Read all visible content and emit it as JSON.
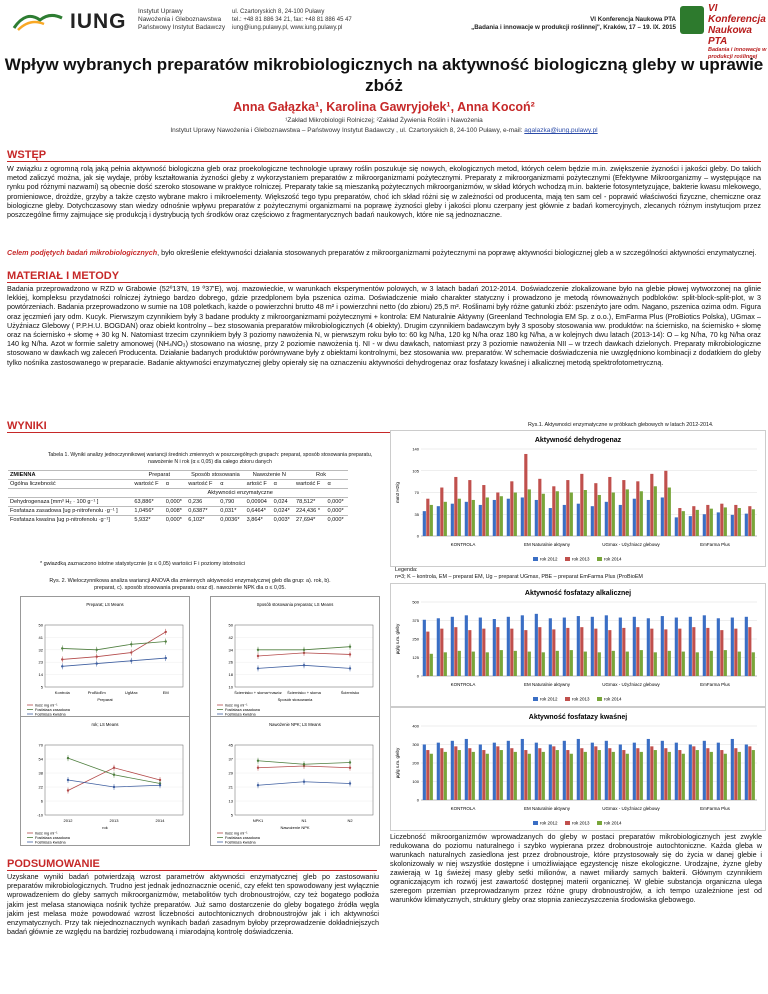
{
  "header": {
    "logo_text": "IUNG",
    "institute": [
      "Instytut Uprawy",
      "Nawożenia i Gleboznawstwa",
      "Państwowy Instytut Badawczy"
    ],
    "address": [
      "ul. Czartoryskich 8, 24-100 Puławy",
      "tel.: +48 81 886 34 21, fax: +48 81 886 45 47",
      "iung@iung.pulawy.pl, www.iung.pulawy.pl"
    ],
    "conference": [
      "VI Konferencja Naukowa PTA",
      "„Badania i innowacje w produkcji roślinnej\", Kraków, 17 – 19. IX. 2015"
    ],
    "badge_title": "VI Konferencja Naukowa PTA",
    "badge_sub": "Badania i innowacje w produkcji roślinnej"
  },
  "title": "Wpływ wybranych preparatów mikrobiologicznych na aktywność biologiczną gleby w uprawie zbóż",
  "authors": "Anna Gałązka¹, Karolina Gawryjołek¹, Anna Kocoń²",
  "affiliation1": "¹Zakład Mikrobiologii Rolniczej; ²Zakład Żywienia Roślin i Nawożenia",
  "affiliation2": "Instytut Uprawy Nawożenia i Gleboznawstwa – Państwowy Instytut Badawczy , ul. Czartoryskich 8, 24-100 Puławy,  e-mail:",
  "email": "agalazka@iung.pulawy.pl",
  "sections": {
    "intro_h": "WSTĘP",
    "intro": "W związku z ogromną rolą jaką pełnia aktywność biologiczna gleb oraz proekologiczne technologie uprawy roślin poszukuje się nowych, ekologicznych metod, których celem będzie m.in. zwiększenie żyzności i jakości gleby. Do takich metod zaliczyć można, jak się wydaje, próby kształtowania żyzności gleby z wykorzystaniem preparatów z mikroorganizmami pożytecznymi. Preparaty z mikroorganizmami pożytecznymi (Efektywne Mikroorganizmy – występujące na rynku pod różnymi nazwami) są obecnie dość szeroko stosowane w praktyce rolniczej. Preparaty takie są mieszanką pożytecznych mikroorganizmów, w skład których wchodzą m.in. bakterie fotosyntetyzujące, bakterie kwasu mlekowego, promieniowce, drożdże, grzyby a także często wybrane makro i mikroelementy. Większość tego typu preparatów, choć ich skład różni się w zależności od producenta, mają ten sam cel - poprawić właściwości fizyczne, chemiczne oraz biologiczne gleby. Dotychczasowy stan wiedzy odnośnie wpływu preparatów z pożytecznymi organizmami na poprawę żyzności gleby i jakości plonu czerpany jest głównie z badań komercyjnych, zlecanych różnym instytucjom przez poszczególne firmy zajmujące się produkcją i dystrybucją tych środków oraz częściowo z fragmentarycznych badań naukowych, które nie są  jednoznaczne.",
    "aim_lead": "Celem podjętych badań mikrobiologicznych",
    "aim": ", było określenie efektywności działania stosowanych preparatów z mikroorganizmami pożytecznymi na poprawę aktywności biologicznej gleb a w szczególności aktywności enzymatycznej.",
    "methods_h": "MATERIAŁ I METODY",
    "methods": "Badania przeprowadzono w RZD w Grabowie (52º13'N, 19 º37'E), woj. mazowieckie, w warunkach eksperymentów polowych, w 3 latach badań 2012-2014. Doświadczenie zlokalizowane było na glebie płowej wytworzonej na glinie lekkiej, kompleksu przydatności rolniczej żytniego bardzo dobrego, gdzie przedplonem była pszenica ozima. Doświadczenie miało charakter statyczny i prowadzono je metodą równoważnych podbloków: split-block-split-plot, w 3 powtórzeniach. Badania przeprowadzono w sumie na 108 poletkach, każde o powierzchni brutto 48 m² i powierzchni netto (do zbioru) 25,5 m². Roślinami były różne gatunki zbóż: pszenżyto jare odm. Nagano, pszenica ozima odm. Figura oraz jęczmień jary odm. Kucyk. Pierwszym czynnikiem były 3 badane produkty z mikroorganizmami pożytecznymi + kontrola: EM Naturalnie Aktywny (Greenland Technologia EM Sp. z o.o.), EmFarma Plus (ProBiotics Polska), UGmax – Użyźniacz Glebowy ( P.P.H.U. BOGDAN) oraz obiekt kontrolny – bez stosowania preparatów mikrobiologicznych (4 obiekty). Drugim czynnikiem badawczym były  3 sposoby stosowania ww. produktów: na ściernisko, na ściernisko + słomę oraz na ściernisko + słomę + 30 kg N. Natomiast trzecim czynnikiem były 3 poziomy nawożenia N, w pierwszym roku było to: 60 kg N/ha, 120 kg N/ha oraz 180 kg N/ha, a w kolejnych dwu latach (2013-14): O – kg N/ha, 70 kg N/ha  oraz 140 kg N/ha.  Azot w formie saletry amonowej (NH₄NO₃) stosowano  na wiosnę, przy 2 poziomie nawożenia tj. NI -  w dwu dawkach, natomiast przy 3 poziomie nawożenia NII – w trzech dawkach dzielonych. Preparaty mikrobiologiczne stosowano w dawkach wg zaleceń Producenta. Działanie badanych produktów porównywane były z obiektami kontrolnymi, bez stosowania ww. preparatów. W schemacie doświadczenia nie uwzględniono kombinacji z dodatkiem do gleby tylko nośnika zastosowanego w preparacie. Badanie aktywności enzymatycznej gleby opierały się na oznaczeniu aktywności dehydrogenaz oraz fosfatazy kwaśnej i alkalicznej metodą spektrofotometryczną.",
    "results_h": "WYNIKI",
    "summary_h": "PODSUMOWANIE",
    "summary": "Uzyskane wyniki badań potwierdzają wzrost parametrów aktywności enzymatycznej gleb po zastosowaniu preparatów mikrobiologicznych. Trudno jest jednak jednoznacznie ocenić, czy efekt ten spowodowany jest wyłącznie wprowadzeniem do gleby samych mikroorganizmów, metabolitów tych drobnoustrojów, czy też bogatego podłoża jakim jest melasa stanowiąca nośnik tychże preparatów. Już samo dostarczenie do gleby bogatego źródła węgla jakim jest melasa może powodować wzrost liczebności autochtonicznych drobnoustrojów jak i ich aktywności enzymatycznych. Przy tak niejednoznacznych wynikach badań zasadnym byłoby przeprowadzenie dokładniejszych badań głównie ze względu na bardziej rozbudowaną i miarodajną kontrolę doświadczenia.",
    "discussion": "Liczebność mikroorganizmów wprowadzanych do gleby w postaci preparatów mikrobiologicznych jest zwykle redukowana do poziomu naturalnego i szybko wypierana przez drobnoustroje autochtoniczne. Każda gleba w warunkach naturalnych zasiedlona jest przez drobnoustroje, które przystosowały się do życia w danej glebie i skolonizowały w niej wszystkie dostępne i umożliwiające egzystencję nisze ekologiczne. Urodzajne, żyzne gleby zawierają w 1g świeżej masy gleby setki milionów, a nawet miliardy samych bakterii. Głównym czynnikiem ograniczającym ich rozwój jest zawartość dostępnej materii organicznej. W glebie substancja organiczna ulega szeregom przemian przeprowadzanym przez różne grupy drobnoustrojów, a ich tempo uzależnione jest od warunków klimatycznych, struktury gleby oraz stopnia zanieczyszczenia środowiska glebowego."
  },
  "table": {
    "caption": "Tabela 1. Wyniki analizy jednoczynnikowej wariancji średnich zmiennych w poszczególnych grupach: preparat, sposób stosowania preparatu, nawożenie N i rok (α ≤ 0,05) dla całego zbioru danych",
    "head1": [
      "ZMIENNA",
      "Preparat",
      "Sposób stosowania",
      "Nawożenie N",
      "Rok"
    ],
    "head2": [
      "Ogólna liczebność",
      "wartość F",
      "α",
      "wartość F",
      "α",
      "artość F",
      "α",
      "wartość F",
      "α"
    ],
    "subhead": "Aktywności enzymatyczne",
    "rows": [
      {
        "name": "Dehydrogenaza [mm³ H₂ · 100 g⁻¹ ]",
        "v": [
          "63,886*",
          "0,000*",
          "0,236",
          "0,790",
          "0,00904",
          "0,024",
          "78,512*",
          "0,000*"
        ]
      },
      {
        "name": "Fosfataza zasadowa [ug p-nitrofenolu ·g⁻¹ ]",
        "v": [
          "1,0456*",
          "0,008*",
          "0,6387*",
          "0,031*",
          "0,6464*",
          "0,024*",
          "224,436 *",
          "0,000*"
        ]
      },
      {
        "name": "Fosfataza kwaśna [ug p-nitrofenolu ·g⁻¹]",
        "v": [
          "5,932*",
          "0,000*",
          "6,102*",
          "0,0036*",
          "3,864*",
          "0,003*",
          "27,694*",
          "0,000*"
        ]
      }
    ],
    "note": "* gwiazdką zaznaczono istotne statystycznie (α ≤ 0,05) wartości F i poziomy istotności"
  },
  "rys1_caption": "Rys.1. Aktywności enzymatyczne w próbkach glebowych w latach 2012-2014.",
  "rys1_legend": [
    "Legenda:",
    "n=3; K – kontrola, EM – preparat EM, Ug – preparat UGmax, PBE – preparat  EmFarma Plus (ProBioEM"
  ],
  "rys2_caption": "Rys. 2. Wieloczynnikowa analiza wariancji ANOVA dla zmiennych aktywności enzymatycznej gleb dla grup: a). rok, b). preparat, c). sposób stosowania preparatu oraz d). nawożenie NPK dla α ≤ 0,05.",
  "chart_data": [
    {
      "type": "bar",
      "title": "Aktywność dehydrogenaz",
      "groups": [
        "KONTROLA",
        "EM Naturalnie aktywny",
        "UGmax - Użyźniacz glebowy",
        "EmFarma Plus"
      ],
      "legend": [
        "rok 2012",
        "rok 2013",
        "rok 2014"
      ],
      "colors": [
        "#3a6ec4",
        "#c0504d",
        "#79a63a"
      ],
      "series": [
        {
          "name": "rok 2012",
          "values": [
            40,
            48,
            52,
            55,
            50,
            58,
            60,
            62,
            58,
            45,
            50,
            52,
            48,
            55,
            50,
            60,
            58,
            62,
            30,
            32,
            35,
            38,
            34,
            36
          ]
        },
        {
          "name": "rok 2013",
          "values": [
            60,
            78,
            95,
            90,
            82,
            70,
            88,
            132,
            92,
            80,
            90,
            100,
            85,
            95,
            90,
            88,
            100,
            105,
            45,
            48,
            50,
            52,
            50,
            48
          ]
        },
        {
          "name": "rok 2014",
          "values": [
            50,
            55,
            60,
            58,
            62,
            64,
            70,
            75,
            68,
            72,
            70,
            74,
            66,
            70,
            75,
            72,
            80,
            78,
            40,
            42,
            44,
            46,
            45,
            43
          ]
        }
      ],
      "ylim": [
        0,
        140
      ],
      "ylabel": "mm3 H2/g"
    },
    {
      "type": "bar",
      "title": "Aktywność fosfatazy alkalicznej",
      "groups": [
        "KONTROLA",
        "EM Naturalnie aktywny",
        "UGmax - Użyźniacz glebowy",
        "EmFarma Plus"
      ],
      "legend": [
        "rok 2012",
        "rok 2013",
        "rok 2014"
      ],
      "colors": [
        "#3a6ec4",
        "#c0504d",
        "#79a63a"
      ],
      "series": [
        {
          "name": "rok 2012",
          "values": [
            380,
            390,
            400,
            410,
            395,
            385,
            400,
            410,
            420,
            390,
            395,
            405,
            400,
            410,
            395,
            400,
            390,
            405,
            395,
            400,
            410,
            390,
            395,
            400
          ]
        },
        {
          "name": "rok 2013",
          "values": [
            300,
            320,
            330,
            310,
            320,
            330,
            320,
            310,
            330,
            315,
            325,
            330,
            320,
            310,
            325,
            330,
            320,
            315,
            320,
            330,
            325,
            310,
            320,
            330
          ]
        },
        {
          "name": "rok 2014",
          "values": [
            150,
            160,
            170,
            165,
            160,
            175,
            170,
            165,
            160,
            170,
            175,
            165,
            160,
            170,
            165,
            175,
            160,
            170,
            165,
            160,
            170,
            175,
            165,
            160
          ]
        }
      ],
      "ylim": [
        0,
        500
      ],
      "ylabel": "µg/g s.m. gleby"
    },
    {
      "type": "bar",
      "title": "Aktywność fosfatazy kwaśnej",
      "groups": [
        "KONTROLA",
        "EM Naturalnie aktywny",
        "UGmax - Użyźniacz glebowy",
        "EmFarma Plus"
      ],
      "legend": [
        "rok 2012",
        "rok 2013",
        "rok 2014"
      ],
      "colors": [
        "#3a6ec4",
        "#c0504d",
        "#79a63a"
      ],
      "series": [
        {
          "name": "rok 2012",
          "values": [
            300,
            310,
            320,
            330,
            300,
            310,
            320,
            330,
            310,
            300,
            320,
            330,
            310,
            320,
            300,
            310,
            330,
            320,
            310,
            300,
            320,
            310,
            330,
            300
          ]
        },
        {
          "name": "rok 2013",
          "values": [
            270,
            280,
            290,
            280,
            270,
            290,
            280,
            270,
            280,
            290,
            270,
            280,
            290,
            280,
            270,
            280,
            290,
            280,
            270,
            290,
            280,
            270,
            280,
            290
          ]
        },
        {
          "name": "rok 2014",
          "values": [
            250,
            260,
            270,
            260,
            250,
            270,
            260,
            250,
            260,
            270,
            250,
            260,
            270,
            260,
            250,
            260,
            270,
            260,
            250,
            270,
            260,
            250,
            260,
            270
          ]
        }
      ],
      "ylim": [
        0,
        400
      ],
      "ylabel": "µg/g s.m. gleby"
    },
    {
      "type": "line",
      "title": "Preparat; LS Means",
      "x": [
        "Kontrola",
        "ProBioEm",
        "UgMax",
        "EM"
      ],
      "xlabel": "Preparat",
      "legend": [
        "Ilość mg ml⁻¹",
        "Fosfataza zasadowa",
        "Fosfataza kwaśna"
      ],
      "colors": [
        "#b34a4a",
        "#4f7f3f",
        "#3f5fa0"
      ],
      "series": [
        {
          "name": "Ilość mg ml⁻¹",
          "values": [
            25,
            27,
            30,
            45
          ]
        },
        {
          "name": "Fosfataza zasadowa",
          "values": [
            33,
            32,
            36,
            38
          ]
        },
        {
          "name": "Fosfataza kwaśna",
          "values": [
            20,
            22,
            24,
            26
          ]
        }
      ],
      "ylim": [
        5,
        50
      ]
    },
    {
      "type": "line",
      "title": "Sposób stosowania preparatu; LS Means",
      "x": [
        "Ściernisko + słoma+nawóz",
        "Ściernisko + słoma",
        "Ściernisko"
      ],
      "xlabel": "Sposób stosowania",
      "legend": [
        "Ilość mg ml⁻¹",
        "Fosfataza zasadowa",
        "Fosfataza kwaśna"
      ],
      "colors": [
        "#b34a4a",
        "#4f7f3f",
        "#3f5fa0"
      ],
      "series": [
        {
          "name": "Ilość mg ml⁻¹",
          "values": [
            30,
            32,
            31
          ]
        },
        {
          "name": "Fosfataza zasadowa",
          "values": [
            34,
            34,
            36
          ]
        },
        {
          "name": "Fosfataza kwaśna",
          "values": [
            22,
            24,
            22
          ]
        }
      ],
      "ylim": [
        10,
        50
      ]
    },
    {
      "type": "line",
      "title": "rok; LS Means",
      "x": [
        "2012",
        "2013",
        "2014"
      ],
      "xlabel": "rok",
      "legend": [
        "Ilość mg ml⁻¹",
        "Fosfataza zasadowa",
        "Fosfataza kwaśna"
      ],
      "colors": [
        "#b34a4a",
        "#4f7f3f",
        "#3f5fa0"
      ],
      "series": [
        {
          "name": "Ilość mg ml⁻¹",
          "values": [
            18,
            44,
            30
          ]
        },
        {
          "name": "Fosfataza zasadowa",
          "values": [
            55,
            36,
            26
          ]
        },
        {
          "name": "Fosfataza kwaśna",
          "values": [
            30,
            22,
            24
          ]
        }
      ],
      "ylim": [
        -10,
        70
      ]
    },
    {
      "type": "line",
      "title": "Nawożenie NPK; LS Means",
      "x": [
        "NPK1",
        "N1",
        "N2"
      ],
      "xlabel": "Nawożenie NPK",
      "legend": [
        "Ilość mg ml⁻¹",
        "Fosfataza zasadowa",
        "Fosfataza kwaśna"
      ],
      "colors": [
        "#b34a4a",
        "#4f7f3f",
        "#3f5fa0"
      ],
      "series": [
        {
          "name": "Ilość mg ml⁻¹",
          "values": [
            32,
            33,
            32
          ]
        },
        {
          "name": "Fosfataza zasadowa",
          "values": [
            36,
            34,
            35
          ]
        },
        {
          "name": "Fosfataza kwaśna",
          "values": [
            22,
            24,
            23
          ]
        }
      ],
      "ylim": [
        5,
        45
      ]
    }
  ]
}
